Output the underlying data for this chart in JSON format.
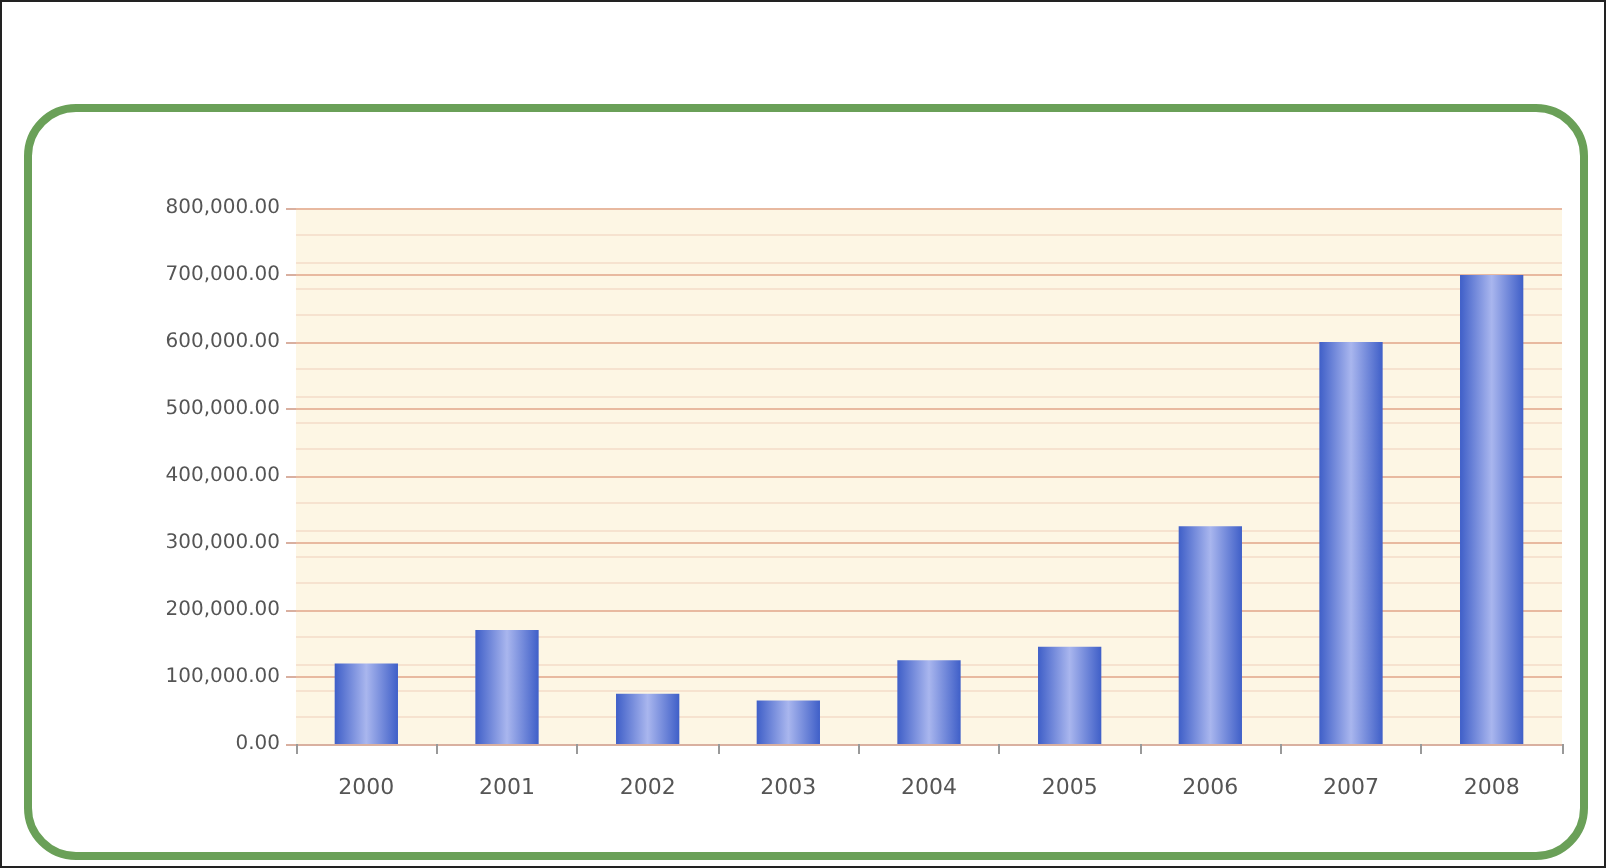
{
  "chart_data": {
    "type": "bar",
    "categories": [
      "2000",
      "2001",
      "2002",
      "2003",
      "2004",
      "2005",
      "2006",
      "2007",
      "2008"
    ],
    "values": [
      120000,
      170000,
      75000,
      65000,
      125000,
      145000,
      325000,
      600000,
      700000
    ],
    "color": "#3f5fc8",
    "ylim": [
      0,
      800000
    ],
    "yticks": [
      {
        "value": 0,
        "label": "0.00"
      },
      {
        "value": 100000,
        "label": "100,000.00"
      },
      {
        "value": 200000,
        "label": "200,000.00"
      },
      {
        "value": 300000,
        "label": "300,000.00"
      },
      {
        "value": 400000,
        "label": "400,000.00"
      },
      {
        "value": 500000,
        "label": "500,000.00"
      },
      {
        "value": 600000,
        "label": "600,000.00"
      },
      {
        "value": 700000,
        "label": "700,000.00"
      },
      {
        "value": 800000,
        "label": "800,000.00"
      }
    ],
    "grid": "y"
  }
}
